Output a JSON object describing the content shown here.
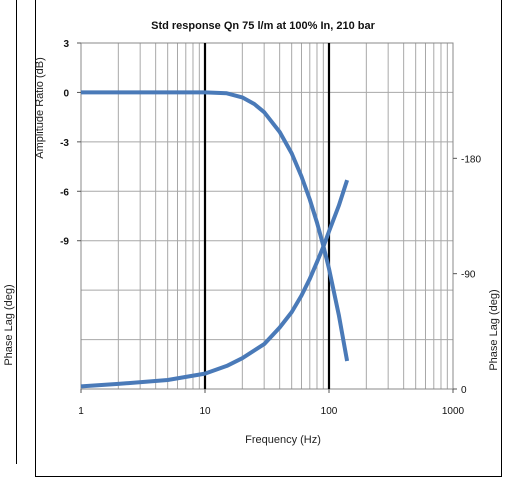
{
  "chart_data": {
    "type": "line",
    "title": "Std response Qn 75 l/m at 100% In, 210 bar",
    "xlabel": "Frequency (Hz)",
    "ylabel_left": "Amplitude Ratio (dB)",
    "ylabel_right": "Phase Lag (deg)",
    "ylabel_clipped": "Phase Lag (deg)",
    "x_scale": "log",
    "xlim": [
      1,
      1000
    ],
    "x_ticks": [
      "1",
      "10",
      "100",
      "1000"
    ],
    "left_axis": {
      "ylim": [
        -18,
        3
      ],
      "ticks": [
        "3",
        "0",
        "-3",
        "-6",
        "-9"
      ]
    },
    "right_axis": {
      "ylim": [
        0,
        270
      ],
      "ticks": [
        "-180",
        "-90",
        "0"
      ]
    },
    "grid": true,
    "series": [
      {
        "axis": "left",
        "color": "#4a7ab8",
        "x": [
          1,
          2,
          5,
          10,
          15,
          20,
          25,
          30,
          40,
          50,
          60,
          70,
          80,
          90,
          100,
          120,
          140
        ],
        "y": [
          0,
          0,
          0,
          0,
          -0.05,
          -0.3,
          -0.7,
          -1.2,
          -2.4,
          -3.7,
          -5.1,
          -6.5,
          -7.9,
          -9.3,
          -10.7,
          -13.5,
          -16.3
        ]
      },
      {
        "axis": "right",
        "color": "#4a7ab8",
        "x": [
          1,
          2,
          5,
          10,
          15,
          20,
          30,
          40,
          50,
          60,
          70,
          80,
          90,
          100,
          120,
          140
        ],
        "y": [
          2,
          4,
          7,
          12,
          18,
          24,
          35,
          48,
          60,
          73,
          86,
          99,
          111,
          123,
          143,
          163
        ]
      }
    ]
  }
}
